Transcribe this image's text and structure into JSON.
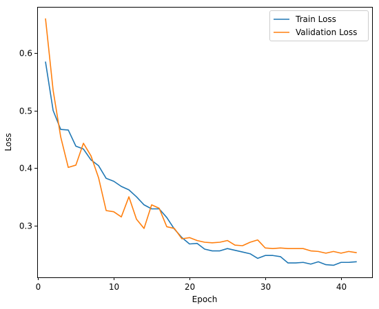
{
  "chart_data": {
    "type": "line",
    "title": "",
    "xlabel": "Epoch",
    "ylabel": "Loss",
    "xlim": [
      -0.1,
      44.1
    ],
    "ylim": [
      0.21,
      0.68
    ],
    "x_ticks": [
      0,
      10,
      20,
      30,
      40
    ],
    "x_tick_labels": [
      "0",
      "10",
      "20",
      "30",
      "40"
    ],
    "y_ticks": [
      0.3,
      0.4,
      0.5,
      0.6
    ],
    "y_tick_labels": [
      "0.3",
      "0.4",
      "0.5",
      "0.6"
    ],
    "grid": false,
    "legend_position": "top-right",
    "x": [
      1,
      2,
      3,
      4,
      5,
      6,
      7,
      8,
      9,
      10,
      11,
      12,
      13,
      14,
      15,
      16,
      17,
      18,
      19,
      20,
      21,
      22,
      23,
      24,
      25,
      26,
      27,
      28,
      29,
      30,
      31,
      32,
      33,
      34,
      35,
      36,
      37,
      38,
      39,
      40,
      41,
      42
    ],
    "series": [
      {
        "name": "Train Loss",
        "color": "#1f77b4",
        "values": [
          0.584,
          0.5,
          0.467,
          0.466,
          0.438,
          0.433,
          0.414,
          0.404,
          0.382,
          0.377,
          0.368,
          0.362,
          0.35,
          0.336,
          0.329,
          0.329,
          0.314,
          0.294,
          0.279,
          0.268,
          0.269,
          0.259,
          0.256,
          0.256,
          0.26,
          0.257,
          0.254,
          0.251,
          0.243,
          0.248,
          0.248,
          0.246,
          0.235,
          0.235,
          0.236,
          0.233,
          0.237,
          0.232,
          0.231,
          0.236,
          0.236,
          0.237
        ]
      },
      {
        "name": "Validation Loss",
        "color": "#ff7f0e",
        "values": [
          0.659,
          0.535,
          0.454,
          0.401,
          0.405,
          0.443,
          0.421,
          0.383,
          0.326,
          0.324,
          0.315,
          0.35,
          0.311,
          0.295,
          0.336,
          0.33,
          0.298,
          0.295,
          0.277,
          0.279,
          0.274,
          0.271,
          0.27,
          0.271,
          0.274,
          0.266,
          0.265,
          0.271,
          0.275,
          0.261,
          0.26,
          0.261,
          0.26,
          0.26,
          0.26,
          0.256,
          0.255,
          0.252,
          0.255,
          0.252,
          0.255,
          0.253
        ]
      }
    ]
  }
}
